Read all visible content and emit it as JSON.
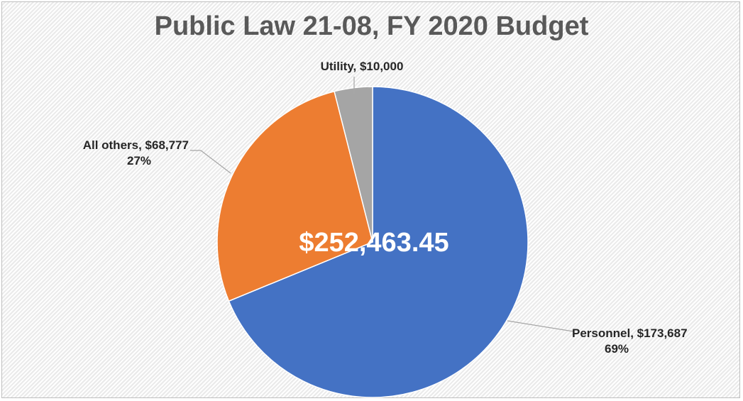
{
  "chart_data": {
    "type": "pie",
    "title": "Public Law 21-08, FY 2020 Budget",
    "center_label": "$252,463.45",
    "slices": [
      {
        "category": "Personnel",
        "value": 173687,
        "value_label": "$173,687",
        "percent_label": "69%",
        "color": "#4472c4"
      },
      {
        "category": "All others",
        "value": 68777,
        "value_label": "$68,777",
        "percent_label": "27%",
        "color": "#ed7d31"
      },
      {
        "category": "Utility",
        "value": 10000,
        "value_label": "$10,000",
        "percent_label": "",
        "color": "#a5a5a5"
      }
    ],
    "start_angle_deg": 0,
    "direction": "clockwise",
    "legend": "none"
  }
}
